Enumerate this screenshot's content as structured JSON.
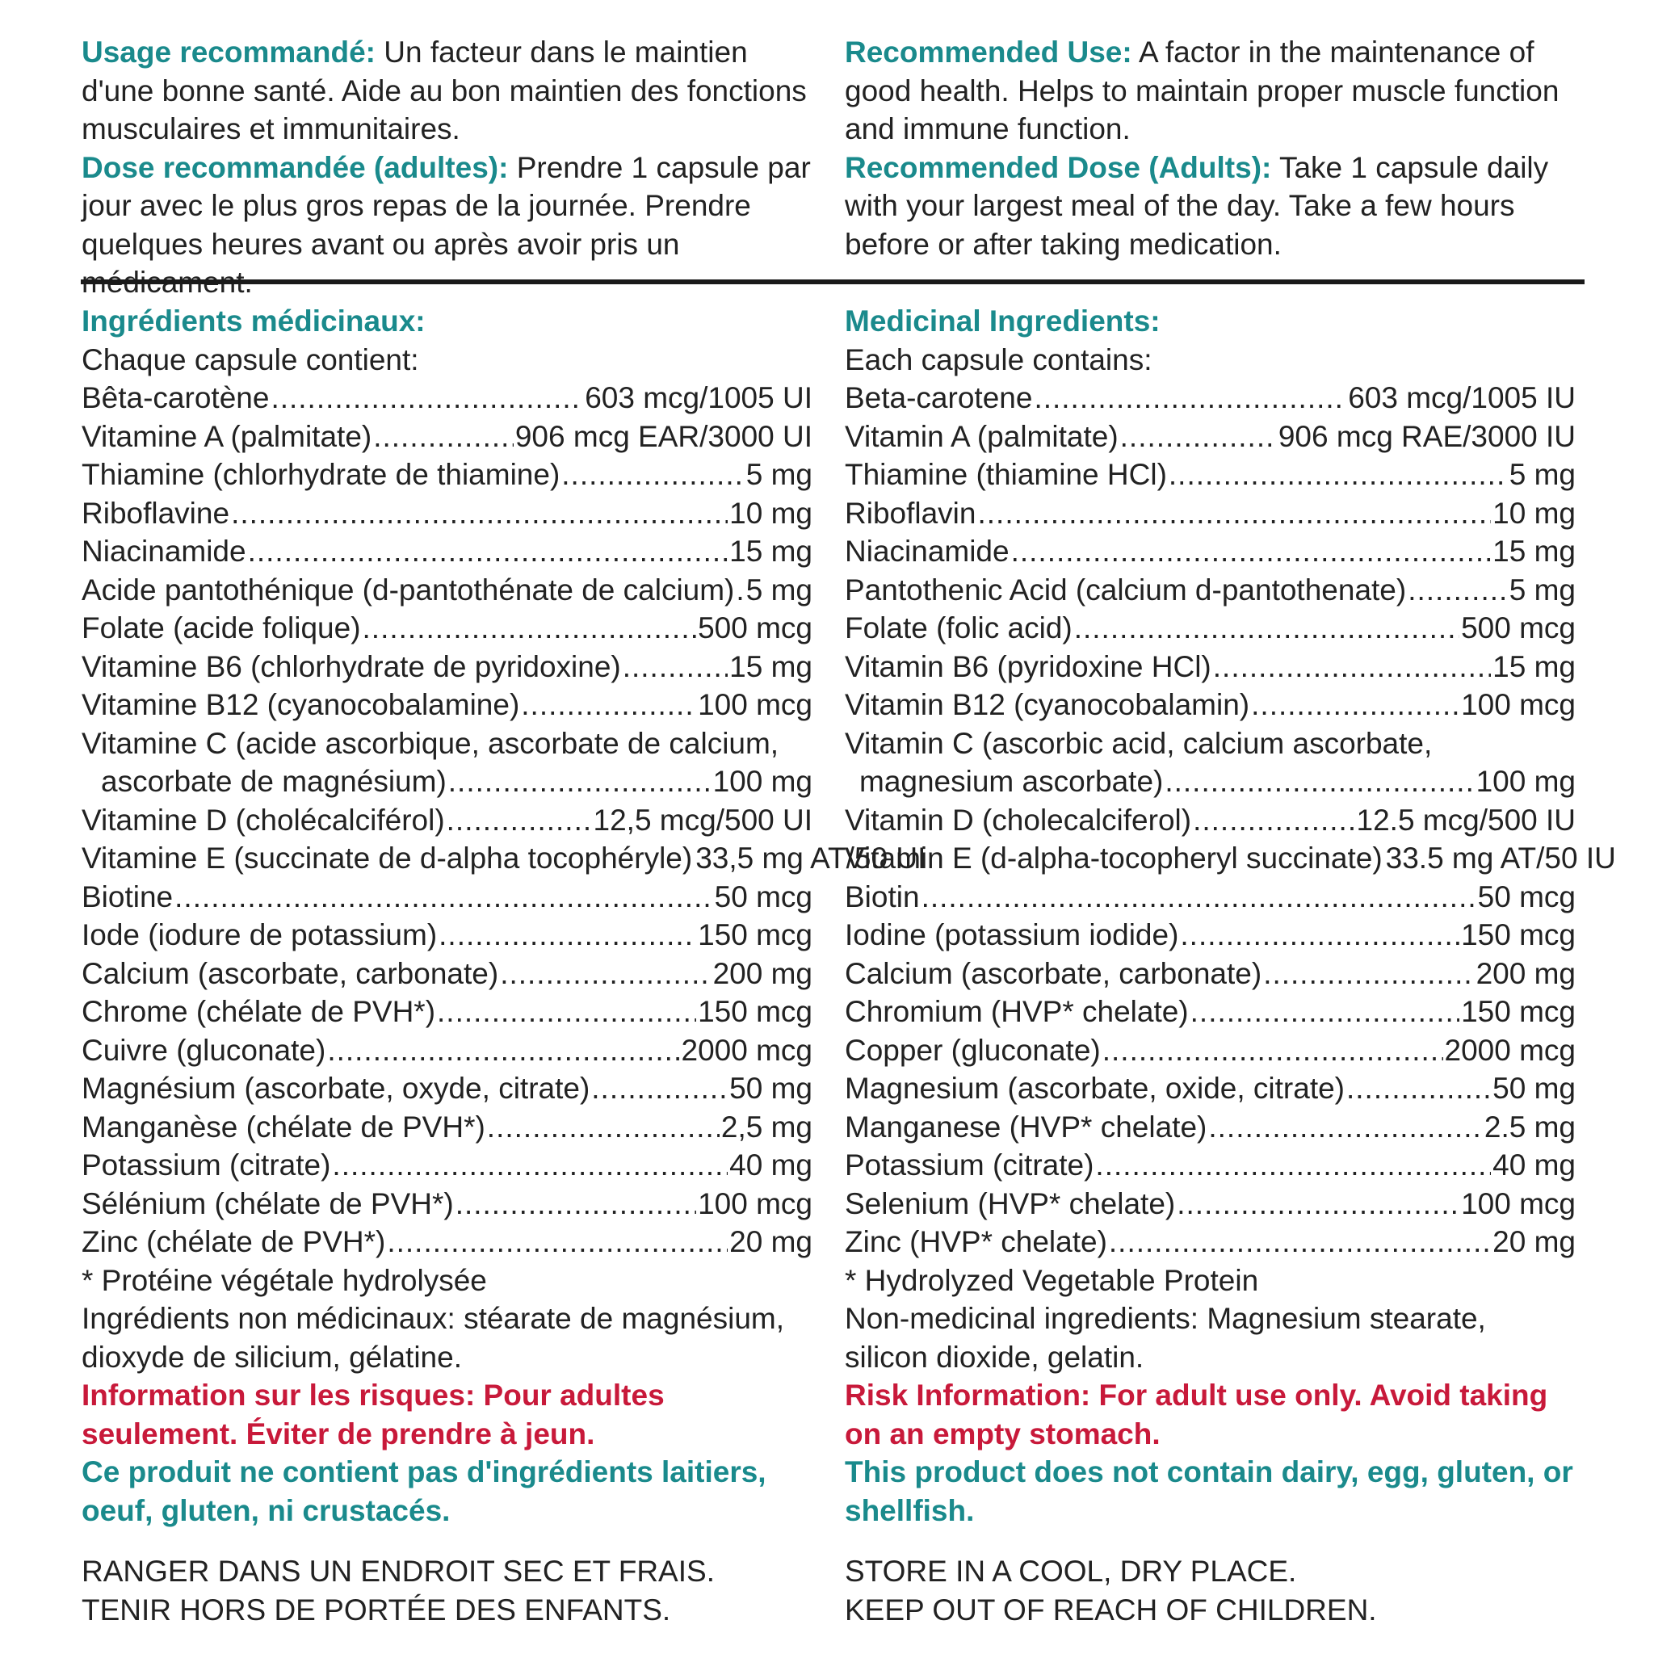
{
  "colors": {
    "heading_teal": "#1a8a8c",
    "risk_red": "#c8193a",
    "text": "#222222",
    "rule": "#1a1a1a"
  },
  "fr": {
    "usage_label": "Usage recommandé:",
    "usage_text": " Un facteur dans le maintien d'une bonne santé. Aide au bon maintien des fonctions musculaires et immunitaires.",
    "dose_label": "Dose recommandée (adultes):",
    "dose_text": " Prendre 1 capsule par jour avec le plus gros repas de la journée. Prendre quelques heures avant ou après avoir pris un médicament.",
    "ingredients_heading": "Ingrédients médicinaux:",
    "each_capsule": "Chaque capsule contient:",
    "ingredients": [
      {
        "name": "Bêta-carotène",
        "amount": "603 mcg/1005 UI"
      },
      {
        "name": "Vitamine A (palmitate)",
        "amount": "906 mcg EAR/3000 UI"
      },
      {
        "name": "Thiamine (chlorhydrate de thiamine)",
        "amount": "5 mg"
      },
      {
        "name": "Riboflavine",
        "amount": "10 mg"
      },
      {
        "name": "Niacinamide",
        "amount": "15 mg"
      },
      {
        "name": "Acide pantothénique (d-pantothénate de calcium)",
        "amount": "5 mg"
      },
      {
        "name": "Folate (acide folique)",
        "amount": "500 mcg"
      },
      {
        "name": "Vitamine B6 (chlorhydrate de pyridoxine)",
        "amount": "15 mg"
      },
      {
        "name": "Vitamine B12 (cyanocobalamine)",
        "amount": "100 mcg"
      }
    ],
    "vitc_line1": "Vitamine C (acide ascorbique, ascorbate de calcium,",
    "vitc_line2": "ascorbate de magnésium)",
    "vitc_amount": "100 mg",
    "ingredients2": [
      {
        "name": "Vitamine D (cholécalciférol)",
        "amount": "12,5 mcg/500 UI"
      },
      {
        "name": "Vitamine E (succinate de d-alpha tocophéryle)",
        "amount": "33,5 mg AT/50 UI"
      },
      {
        "name": "Biotine",
        "amount": "50 mcg"
      },
      {
        "name": "Iode (iodure de potassium)",
        "amount": "150 mcg"
      },
      {
        "name": "Calcium (ascorbate, carbonate)",
        "amount": "200 mg"
      },
      {
        "name": "Chrome (chélate de PVH*)",
        "amount": "150 mcg"
      },
      {
        "name": "Cuivre (gluconate)",
        "amount": "2000 mcg"
      },
      {
        "name": "Magnésium (ascorbate, oxyde, citrate)",
        "amount": "50 mg"
      },
      {
        "name": "Manganèse (chélate de PVH*)",
        "amount": "2,5 mg"
      },
      {
        "name": "Potassium (citrate)",
        "amount": "40 mg"
      },
      {
        "name": "Sélénium (chélate de PVH*)",
        "amount": "100 mcg"
      },
      {
        "name": "Zinc (chélate de PVH*)",
        "amount": "20 mg"
      }
    ],
    "footnote": "* Protéine végétale hydrolysée",
    "non_medicinal": "Ingrédients non médicinaux: stéarate de magnésium, dioxyde de silicium, gélatine.",
    "risk": "Information sur les risques: Pour adultes seulement. Éviter de prendre à jeun.",
    "allergen": "Ce produit ne contient pas d'ingrédients laitiers, oeuf, gluten, ni crustacés.",
    "storage1": "RANGER DANS UN ENDROIT SEC ET FRAIS.",
    "storage2": "TENIR HORS DE PORTÉE DES ENFANTS."
  },
  "en": {
    "usage_label": "Recommended Use:",
    "usage_text": " A factor in the maintenance of good health. Helps to maintain proper muscle function and immune function.",
    "dose_label": "Recommended Dose (Adults):",
    "dose_text": "  Take 1 capsule daily with your largest meal of the day. Take a few hours before or after taking medication.",
    "ingredients_heading": "Medicinal Ingredients:",
    "each_capsule": "Each capsule contains:",
    "ingredients": [
      {
        "name": "Beta-carotene",
        "amount": "603 mcg/1005 IU"
      },
      {
        "name": "Vitamin A (palmitate)",
        "amount": "906 mcg RAE/3000 IU"
      },
      {
        "name": "Thiamine (thiamine HCl)",
        "amount": "5 mg"
      },
      {
        "name": "Riboflavin",
        "amount": "10 mg"
      },
      {
        "name": "Niacinamide",
        "amount": "15 mg"
      },
      {
        "name": "Pantothenic Acid (calcium d-pantothenate)",
        "amount": "5 mg"
      },
      {
        "name": "Folate (folic acid)",
        "amount": "500 mcg"
      },
      {
        "name": "Vitamin B6 (pyridoxine HCl)",
        "amount": "15 mg"
      },
      {
        "name": "Vitamin B12 (cyanocobalamin)",
        "amount": "100 mcg"
      }
    ],
    "vitc_line1": "Vitamin C (ascorbic acid, calcium ascorbate,",
    "vitc_line2": "magnesium ascorbate)",
    "vitc_amount": "100 mg",
    "ingredients2": [
      {
        "name": "Vitamin D (cholecalciferol)",
        "amount": "12.5 mcg/500 IU"
      },
      {
        "name": "Vitamin E (d-alpha-tocopheryl succinate)",
        "amount": "33.5 mg AT/50 IU"
      },
      {
        "name": "Biotin",
        "amount": "50 mcg"
      },
      {
        "name": "Iodine (potassium iodide)",
        "amount": "150 mcg"
      },
      {
        "name": "Calcium (ascorbate, carbonate)",
        "amount": "200 mg"
      },
      {
        "name": "Chromium (HVP* chelate)",
        "amount": "150 mcg"
      },
      {
        "name": "Copper (gluconate)",
        "amount": "2000 mcg"
      },
      {
        "name": "Magnesium (ascorbate, oxide, citrate)",
        "amount": "50 mg"
      },
      {
        "name": "Manganese (HVP* chelate)",
        "amount": "2.5 mg"
      },
      {
        "name": "Potassium (citrate)",
        "amount": "40 mg"
      },
      {
        "name": "Selenium (HVP* chelate)",
        "amount": "100 mcg"
      },
      {
        "name": "Zinc (HVP* chelate)",
        "amount": "20 mg"
      }
    ],
    "footnote": "* Hydrolyzed Vegetable Protein",
    "non_medicinal": "Non-medicinal ingredients:  Magnesium stearate, silicon dioxide, gelatin.",
    "risk": "Risk Information: For adult use only. Avoid taking on an empty stomach.",
    "allergen": "This product does not contain dairy, egg, gluten, or shellfish.",
    "storage1": "STORE IN A COOL, DRY PLACE.",
    "storage2": "KEEP OUT OF REACH OF CHILDREN."
  }
}
